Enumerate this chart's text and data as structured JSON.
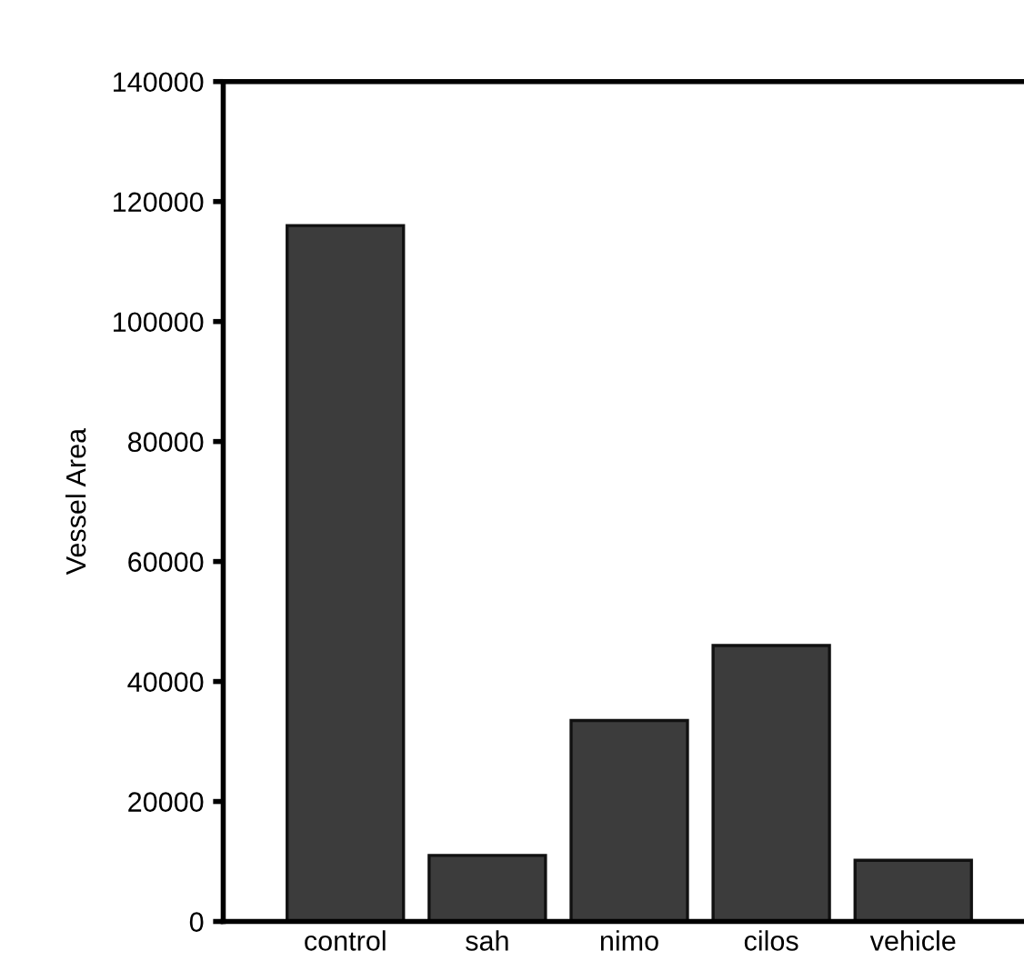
{
  "chart_data": {
    "type": "bar",
    "ylabel": "Vessel Area",
    "categories": [
      "control",
      "sah",
      "nimo",
      "cilos",
      "vehicle"
    ],
    "values": [
      116000,
      11000,
      33500,
      46000,
      10200
    ],
    "color": "#3c3c3c",
    "ylim": [
      0,
      140000
    ],
    "yticks": [
      0,
      20000,
      40000,
      60000,
      80000,
      100000,
      120000,
      140000
    ],
    "grid": false,
    "legend": false
  }
}
